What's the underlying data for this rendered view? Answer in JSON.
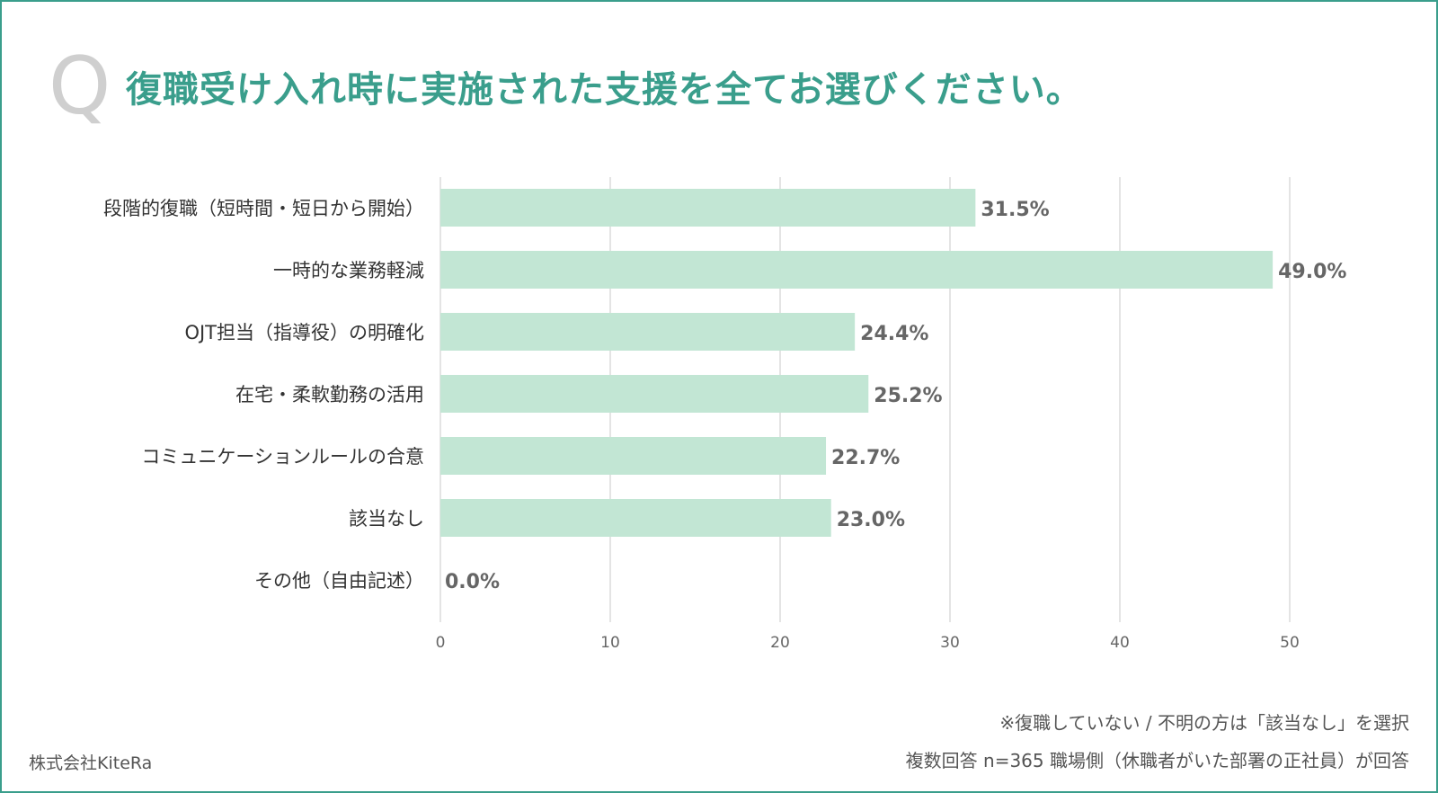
{
  "header": {
    "q_mark": "Q",
    "title": "復職受け入れ時に実施された支援を全てお選びください。"
  },
  "notes": {
    "line1": "※復職していない / 不明の方は「該当なし」を選択",
    "line2": "複数回答 n=365 職場側（休職者がいた部署の正社員）が回答"
  },
  "company": "株式会社KiteRa",
  "colors": {
    "accent": "#3a9e8c",
    "bar": "#c2e6d4",
    "grid": "#dcdcdc",
    "value_label": "#666666",
    "category_label": "#333333"
  },
  "chart_data": {
    "type": "bar",
    "orientation": "horizontal",
    "title": "復職受け入れ時に実施された支援を全てお選びください。",
    "categories": [
      "段階的復職（短時間・短日から開始）",
      "一時的な業務軽減",
      "OJT担当（指導役）の明確化",
      "在宅・柔軟勤務の活用",
      "コミュニケーションルールの合意",
      "該当なし",
      "その他（自由記述）"
    ],
    "values": [
      31.5,
      49.0,
      24.4,
      25.2,
      22.7,
      23.0,
      0.0
    ],
    "value_labels": [
      "31.5%",
      "49.0%",
      "24.4%",
      "25.2%",
      "22.7%",
      "23.0%",
      "0.0%"
    ],
    "xticks": [
      0,
      10,
      20,
      30,
      40,
      50
    ],
    "xlim": [
      0,
      50
    ],
    "grid": true,
    "legend": "none"
  }
}
